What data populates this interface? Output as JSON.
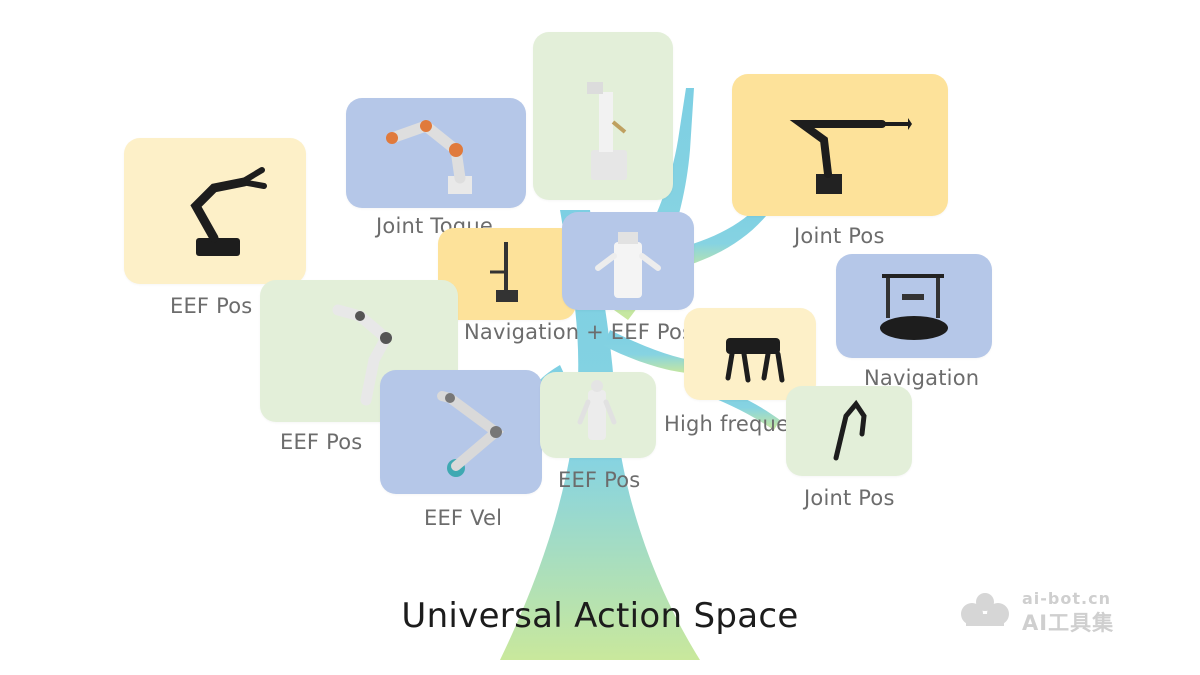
{
  "title": "Universal Action Space",
  "colors": {
    "yellow_light": "#fdf0c8",
    "yellow": "#fde29a",
    "green": "#e3efd9",
    "blue": "#b5c7e8",
    "trunk_blue": "#7dcfe3",
    "trunk_green": "#c9e89c"
  },
  "nodes": [
    {
      "label": "EEF Pos",
      "robot": "robot-arm-icon"
    },
    {
      "label": "Joint Toque",
      "robot": "robot-arm-icon"
    },
    {
      "label": "",
      "robot": "humanoid-icon"
    },
    {
      "label": "Joint Pos",
      "robot": "robot-arm-icon"
    },
    {
      "label": "Navigation + EEF Pos",
      "robot": "mobile-manipulator-icon"
    },
    {
      "label": "",
      "robot": "dual-arm-robot-icon"
    },
    {
      "label": "Navigation",
      "robot": "mobile-base-icon"
    },
    {
      "label": "EEF Pos",
      "robot": "robot-arm-icon"
    },
    {
      "label": "High freque",
      "robot": "quadruped-icon"
    },
    {
      "label": "EEF Vel",
      "robot": "robot-arm-icon"
    },
    {
      "label": "EEF Pos",
      "robot": "humanoid-icon"
    },
    {
      "label": "Joint Pos",
      "robot": "robot-arm-icon"
    }
  ],
  "watermark": {
    "url": "ai-bot.cn",
    "name": "AI工具集",
    "icon": "cloud-logo-icon"
  }
}
